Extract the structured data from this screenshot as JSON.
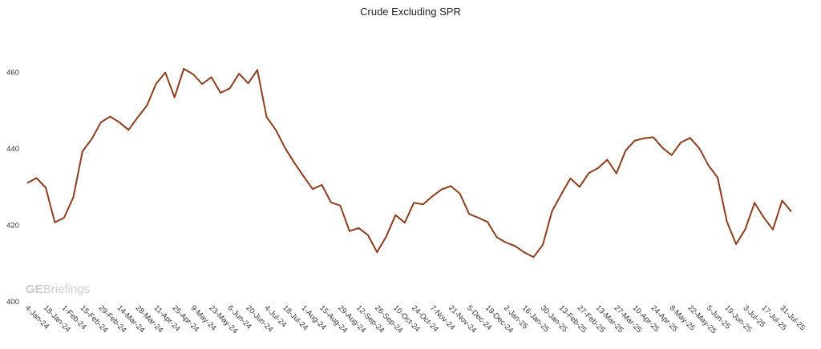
{
  "chart_data": {
    "type": "line",
    "title": "Crude Excluding SPR",
    "xlabel": "",
    "ylabel": "",
    "ylim": [
      400,
      470
    ],
    "yticks": [
      400,
      420,
      440,
      460
    ],
    "grid": false,
    "legend": "none",
    "line_color": "#8B3E1E",
    "x_tick_labels": [
      "4-Jan-24",
      "18-Jan-24",
      "1-Feb-24",
      "15-Feb-24",
      "29-Feb-24",
      "14-Mar-24",
      "28-Mar-24",
      "11-Apr-24",
      "25-Apr-24",
      "9-May-24",
      "23-May-24",
      "6-Jun-24",
      "20-Jun-24",
      "4-Jul-24",
      "18-Jul-24",
      "1-Aug-24",
      "15-Aug-24",
      "29-Aug-24",
      "12-Sep-24",
      "26-Sep-24",
      "10-Oct-24",
      "24-Oct-24",
      "7-Nov-24",
      "21-Nov-24",
      "5-Dec-24",
      "19-Dec-24",
      "2-Jan-25",
      "16-Jan-25",
      "30-Jan-25",
      "13-Feb-25",
      "27-Feb-25",
      "13-Mar-25",
      "27-Mar-25",
      "10-Apr-25",
      "24-Apr-25",
      "8-May-25",
      "22-May-25",
      "5-Jun-25",
      "19-Jun-25",
      "3-Jul-25",
      "17-Jul-25",
      "31-Jul-25"
    ],
    "series": [
      {
        "values": [
          431.1,
          432.4,
          429.9,
          420.8,
          422.0,
          427.3,
          439.4,
          442.6,
          447.0,
          448.5,
          447.0,
          445.0,
          448.3,
          451.4,
          457.1,
          460.0,
          453.5,
          461.0,
          459.6,
          457.0,
          458.8,
          454.7,
          455.9,
          459.7,
          457.2,
          460.7,
          448.4,
          445.0,
          440.3,
          436.4,
          432.9,
          429.5,
          430.6,
          426.0,
          425.2,
          418.5,
          419.3,
          417.5,
          413.0,
          417.1,
          422.7,
          420.7,
          425.9,
          425.5,
          427.6,
          429.4,
          430.3,
          428.3,
          423.0,
          422.0,
          420.9,
          416.9,
          415.5,
          414.6,
          412.9,
          411.7,
          414.9,
          423.7,
          428.1,
          432.3,
          430.1,
          433.7,
          435.0,
          437.2,
          433.6,
          439.6,
          442.2,
          442.8,
          443.1,
          440.3,
          438.4,
          441.7,
          442.9,
          440.2,
          435.7,
          432.5,
          421.0,
          415.1,
          419.0,
          425.9,
          422.1,
          418.9,
          426.5,
          423.6
        ]
      }
    ]
  },
  "watermark": {
    "brand_bold": "GE",
    "brand_rest": "Briefings"
  }
}
